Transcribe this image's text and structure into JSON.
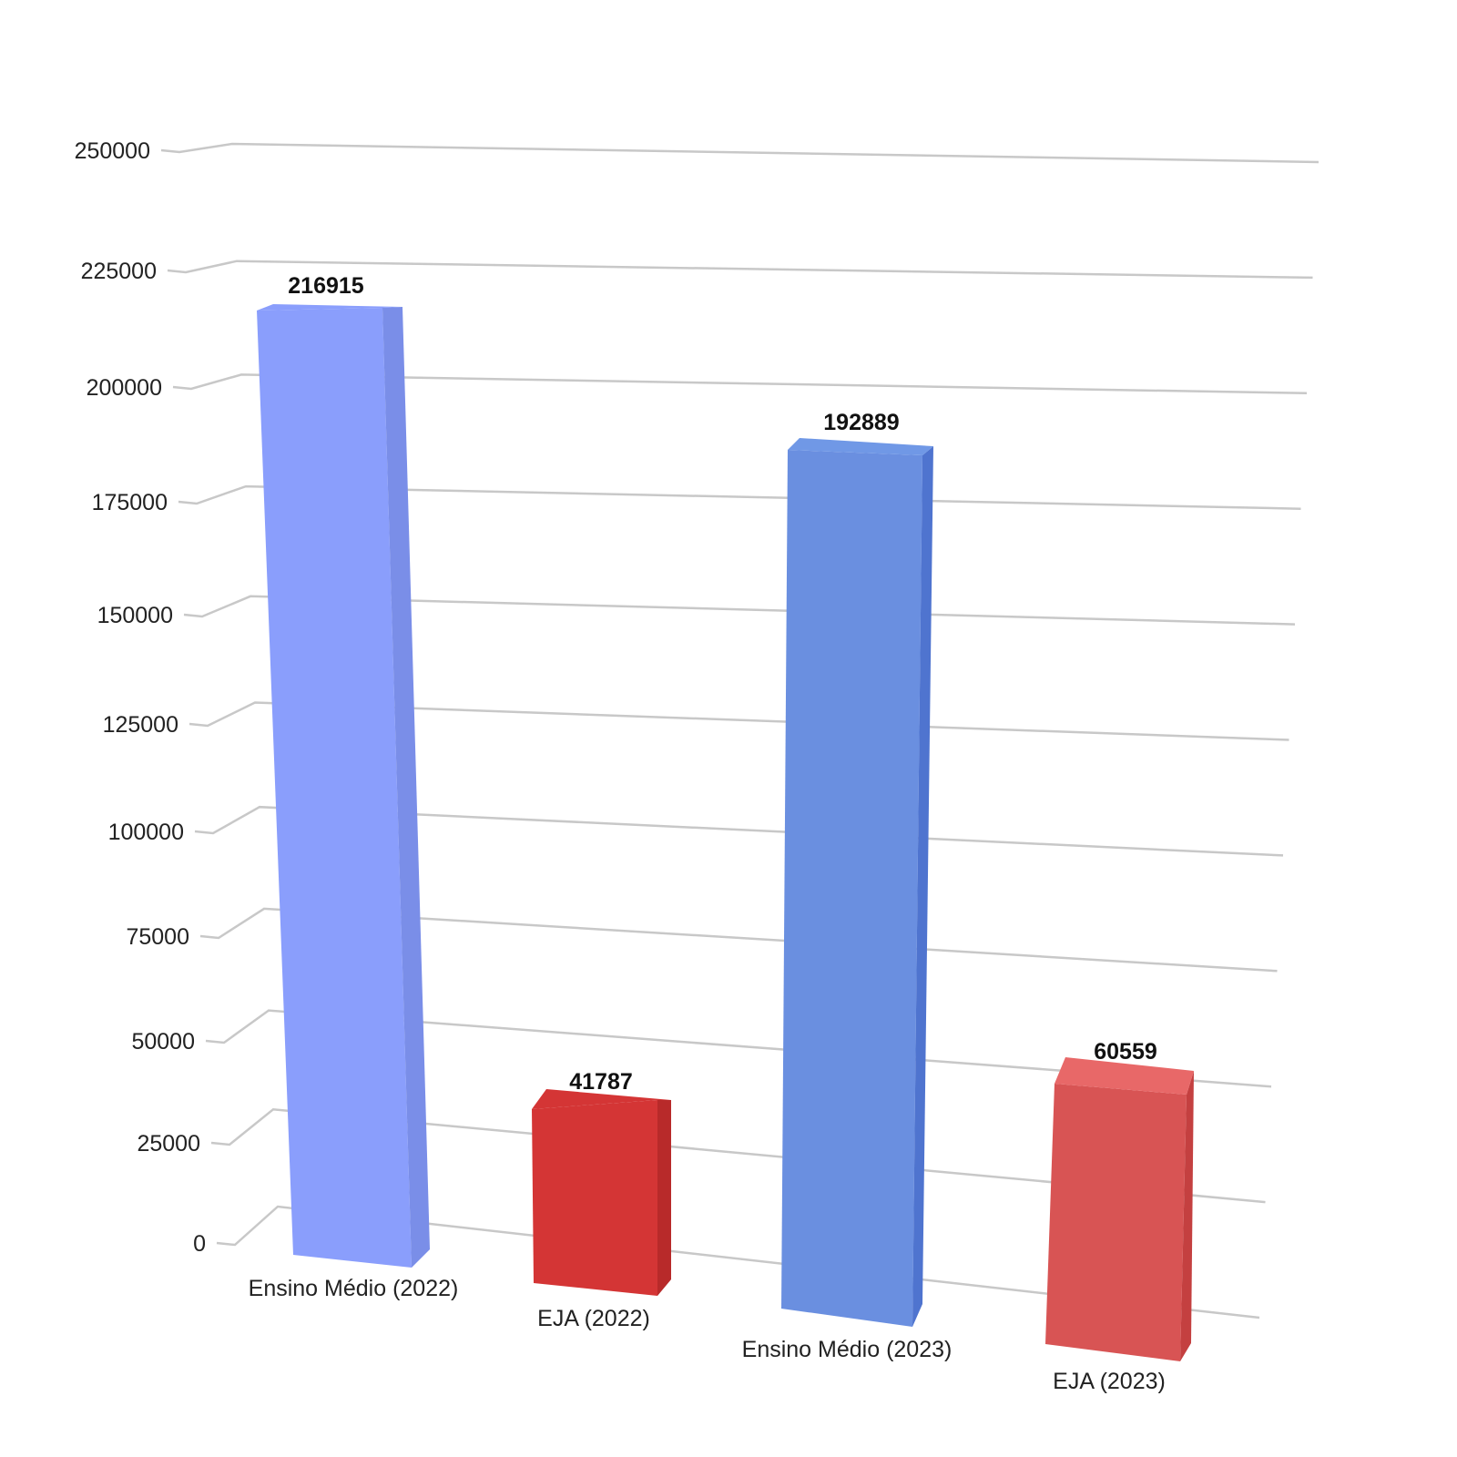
{
  "chart_data": {
    "type": "bar",
    "title": "",
    "xlabel": "",
    "ylabel": "",
    "categories": [
      "Ensino Médio (2022)",
      "EJA (2022)",
      "Ensino Médio (2023)",
      "EJA (2023)"
    ],
    "values": [
      216915,
      41787,
      192889,
      60559
    ],
    "value_labels": [
      "216915",
      "41787",
      "192889",
      "60559"
    ],
    "colors": [
      "#8a9efc",
      "#d43535",
      "#6a8fe0",
      "#d85454"
    ],
    "y_ticks": [
      0,
      25000,
      50000,
      75000,
      100000,
      125000,
      150000,
      175000,
      200000,
      225000,
      250000
    ],
    "y_tick_labels": [
      "0",
      "25000",
      "50000",
      "75000",
      "100000",
      "125000",
      "150000",
      "175000",
      "200000",
      "225000",
      "250000"
    ],
    "ylim": [
      0,
      250000
    ],
    "grid": true,
    "legend": "none",
    "style": "3d-perspective"
  }
}
